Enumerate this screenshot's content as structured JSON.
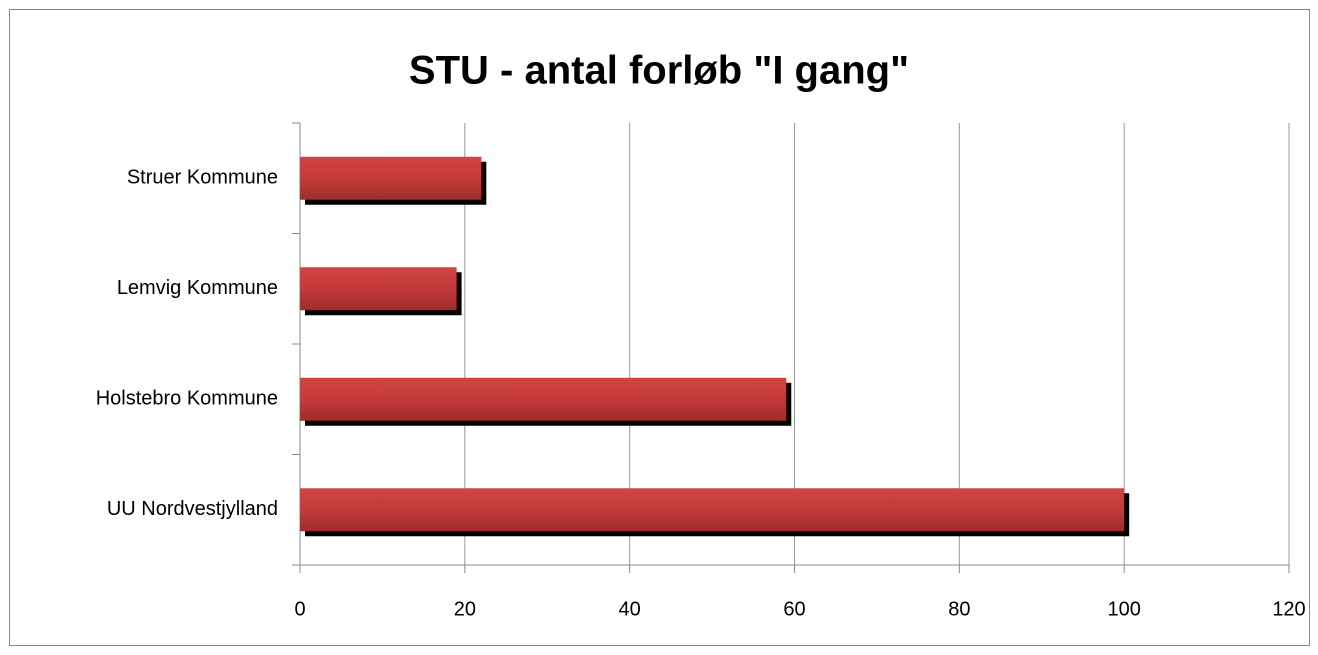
{
  "chart_data": {
    "type": "bar",
    "orientation": "horizontal",
    "title": "STU - antal forløb \"I gang\"",
    "categories": [
      "Struer Kommune",
      "Lemvig Kommune",
      "Holstebro Kommune",
      "UU Nordvestjylland"
    ],
    "values": [
      22,
      19,
      59,
      100
    ],
    "color": "#c83a3a",
    "xlim": [
      0,
      120
    ],
    "xticks": [
      0,
      20,
      40,
      60,
      80,
      100,
      120
    ],
    "grid": true
  }
}
